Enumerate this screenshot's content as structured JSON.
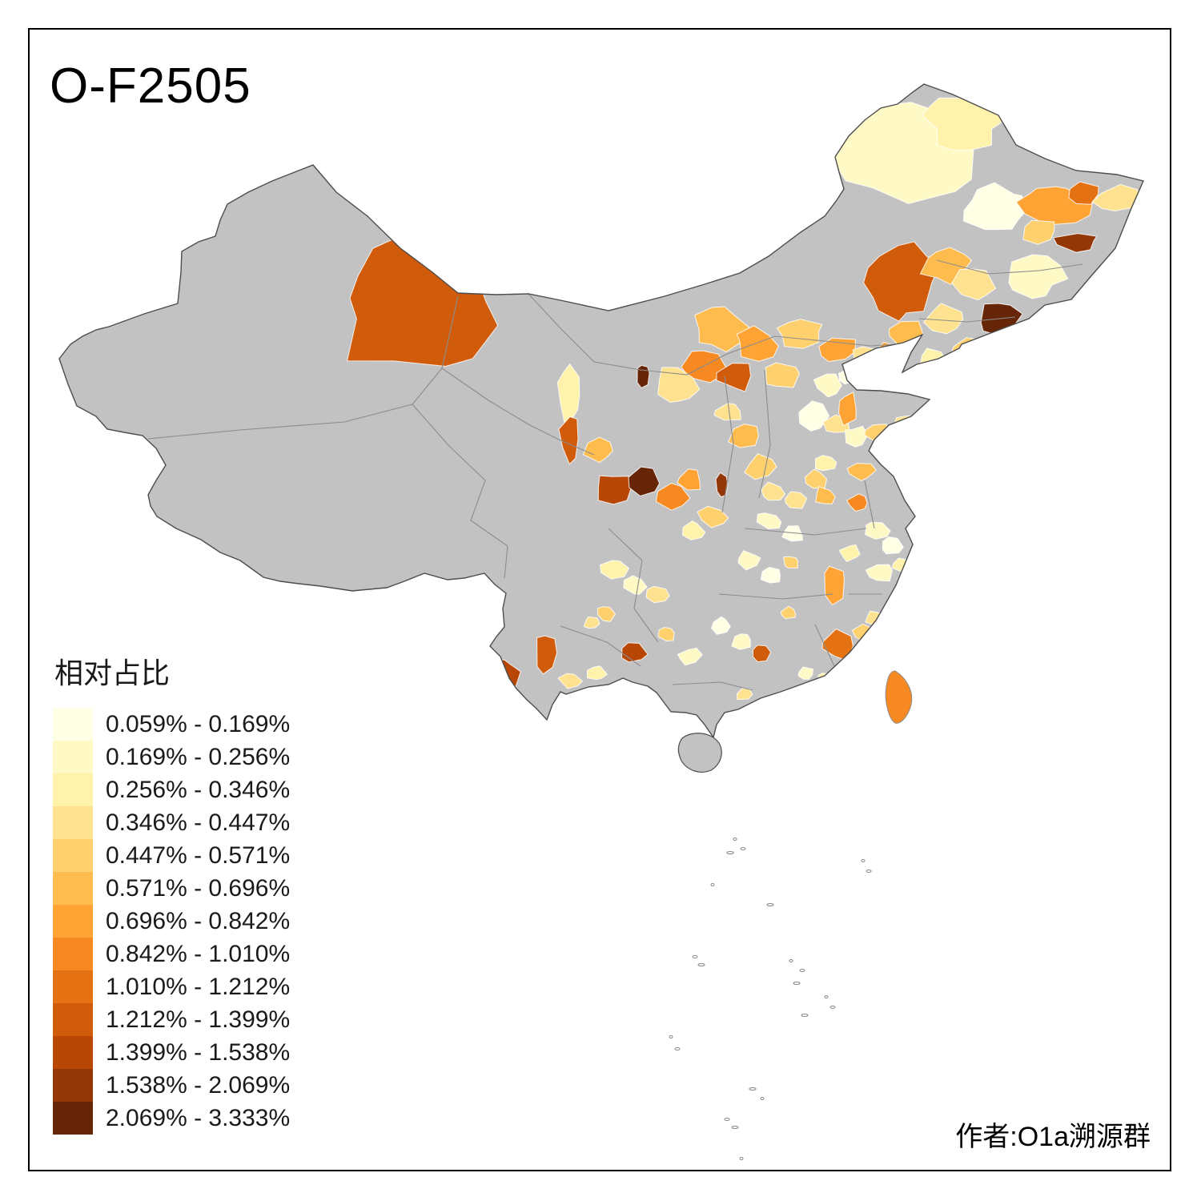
{
  "title": "O-F2505",
  "attribution": "作者:O1a溯源群",
  "legend": {
    "title": "相对占比",
    "no_data_color": "#C2C2C2",
    "coastline_color": "#4D4D4D",
    "classes": [
      {
        "label": "0.059% - 0.169%",
        "color": "#FFFFE5"
      },
      {
        "label": "0.169% - 0.256%",
        "color": "#FFF9C6"
      },
      {
        "label": "0.256% - 0.346%",
        "color": "#FFF2AA"
      },
      {
        "label": "0.346% - 0.447%",
        "color": "#FEE28F"
      },
      {
        "label": "0.447% - 0.571%",
        "color": "#FED16E"
      },
      {
        "label": "0.571% - 0.696%",
        "color": "#FEBC4E"
      },
      {
        "label": "0.696% - 0.842%",
        "color": "#FEA334"
      },
      {
        "label": "0.842% - 1.010%",
        "color": "#F68921"
      },
      {
        "label": "1.010% - 1.212%",
        "color": "#E57212"
      },
      {
        "label": "1.212% - 1.399%",
        "color": "#D05B0A"
      },
      {
        "label": "1.399% - 1.538%",
        "color": "#B84706"
      },
      {
        "label": "1.538% - 2.069%",
        "color": "#933706"
      },
      {
        "label": "2.069% - 3.333%",
        "color": "#662506"
      }
    ]
  },
  "chart_data": {
    "type": "heatmap",
    "title": "O-F2505",
    "legend_title": "相对占比",
    "bins": [
      "0.059% - 0.169%",
      "0.169% - 0.256%",
      "0.256% - 0.346%",
      "0.346% - 0.447%",
      "0.447% - 0.571%",
      "0.571% - 0.696%",
      "0.696% - 0.842%",
      "0.842% - 1.010%",
      "1.010% - 1.212%",
      "1.212% - 1.399%",
      "1.399% - 1.538%",
      "1.538% - 2.069%",
      "2.069% - 3.333%"
    ]
  }
}
